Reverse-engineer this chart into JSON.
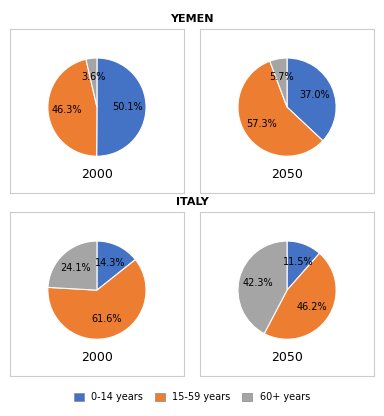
{
  "title_yemen": "YEMEN",
  "title_italy": "ITALY",
  "charts": {
    "yemen_2000": {
      "label": "2000",
      "values": [
        50.1,
        46.3,
        3.6
      ],
      "colors": [
        "#4472C4",
        "#ED7D31",
        "#A5A5A5"
      ],
      "pct_labels": [
        "50.1%",
        "46.3%",
        "3.6%"
      ]
    },
    "yemen_2050": {
      "label": "2050",
      "values": [
        37.0,
        57.3,
        5.7
      ],
      "colors": [
        "#4472C4",
        "#ED7D31",
        "#A5A5A5"
      ],
      "pct_labels": [
        "37.0%",
        "57.3%",
        "5.7%"
      ]
    },
    "italy_2000": {
      "label": "2000",
      "values": [
        14.3,
        61.6,
        24.1
      ],
      "colors": [
        "#4472C4",
        "#ED7D31",
        "#A5A5A5"
      ],
      "pct_labels": [
        "14.3%",
        "61.6%",
        "24.1%"
      ]
    },
    "italy_2050": {
      "label": "2050",
      "values": [
        11.5,
        46.2,
        42.3
      ],
      "colors": [
        "#4472C4",
        "#ED7D31",
        "#A5A5A5"
      ],
      "pct_labels": [
        "11.5%",
        "46.2%",
        "42.3%"
      ]
    }
  },
  "legend_labels": [
    "0-14 years",
    "15-59 years",
    "60+ years"
  ],
  "legend_colors": [
    "#4472C4",
    "#ED7D31",
    "#A5A5A5"
  ],
  "bg_color": "#FFFFFF",
  "border_color": "#CCCCCC",
  "title_fontsize": 8,
  "label_fontsize": 7,
  "year_fontsize": 9,
  "legend_fontsize": 7
}
